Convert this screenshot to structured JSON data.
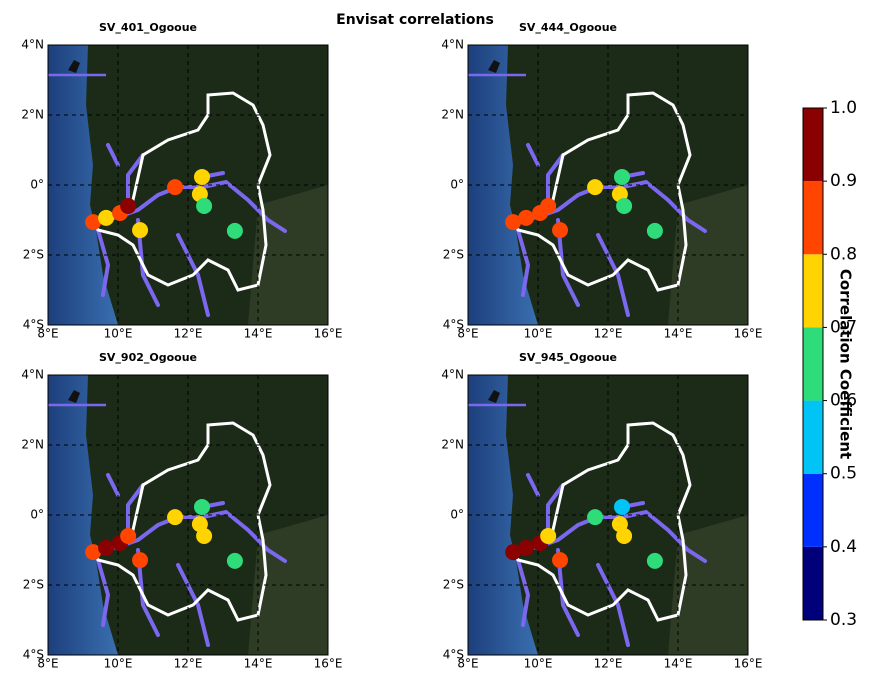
{
  "chart_data": {
    "type": "map",
    "title": "Envisat correlations",
    "xlim": [
      8,
      16
    ],
    "ylim": [
      -4,
      4
    ],
    "xticks": [
      {
        "value": 8,
        "label": "8°E"
      },
      {
        "value": 10,
        "label": "10°E"
      },
      {
        "value": 12,
        "label": "12°E"
      },
      {
        "value": 14,
        "label": "14°E"
      },
      {
        "value": 16,
        "label": "16°E"
      }
    ],
    "yticks": [
      {
        "value": 4,
        "label": "4°N"
      },
      {
        "value": 2,
        "label": "2°N"
      },
      {
        "value": 0,
        "label": "0°"
      },
      {
        "value": -2,
        "label": "2°S"
      },
      {
        "value": -4,
        "label": "4°S"
      }
    ],
    "grid": true,
    "stations": [
      {
        "lon": 9.29,
        "lat": -1.06
      },
      {
        "lon": 9.66,
        "lat": -0.94
      },
      {
        "lon": 10.06,
        "lat": -0.8
      },
      {
        "lon": 10.29,
        "lat": -0.6
      },
      {
        "lon": 10.63,
        "lat": -1.29
      },
      {
        "lon": 11.63,
        "lat": -0.06
      },
      {
        "lon": 12.4,
        "lat": 0.23
      },
      {
        "lon": 12.34,
        "lat": -0.26
      },
      {
        "lon": 12.46,
        "lat": -0.6
      },
      {
        "lon": 13.34,
        "lat": -1.31
      }
    ],
    "panels": [
      {
        "title": "SV_401_Ogooue",
        "values": [
          0.85,
          0.75,
          0.85,
          0.95,
          0.75,
          0.85,
          0.75,
          0.75,
          0.65,
          0.65
        ]
      },
      {
        "title": "SV_444_Ogooue",
        "values": [
          0.85,
          0.85,
          0.85,
          0.85,
          0.85,
          0.75,
          0.65,
          0.75,
          0.65,
          0.65
        ]
      },
      {
        "title": "SV_902_Ogooue",
        "values": [
          0.85,
          0.95,
          0.95,
          0.85,
          0.85,
          0.75,
          0.65,
          0.75,
          0.75,
          0.65
        ]
      },
      {
        "title": "SV_945_Ogooue",
        "values": [
          0.95,
          0.95,
          0.95,
          0.75,
          0.85,
          0.65,
          0.55,
          0.75,
          0.75,
          0.65
        ]
      }
    ],
    "colorbar": {
      "label": "Correlation Coefficient",
      "clim": [
        0.3,
        1.0
      ],
      "ticks": [
        {
          "value": 1,
          "label": "1.0"
        },
        0.9,
        0.8,
        0.7,
        0.6,
        0.5,
        0.4,
        0.3
      ],
      "colors": [
        "#00007a",
        "#0030ff",
        "#00c4f5",
        "#2edc7a",
        "#ffd400",
        "#ff4500",
        "#8b0000"
      ]
    }
  }
}
